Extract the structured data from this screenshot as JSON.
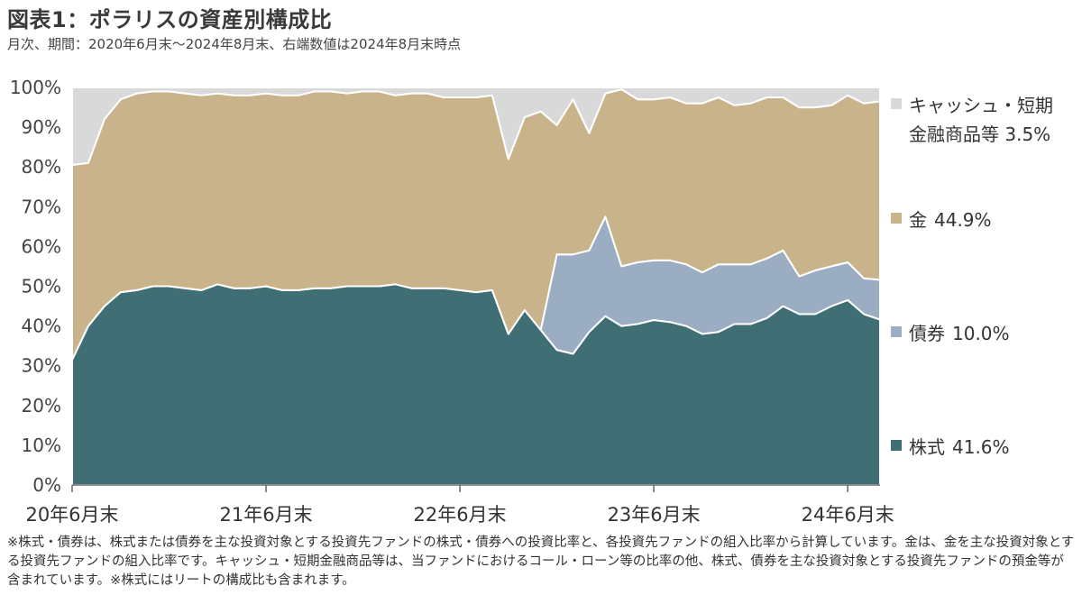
{
  "header": {
    "title": "図表1：ポラリスの資産別構成比",
    "subtitle": "月次、期間：2020年6月末〜2024年8月末、右端数値は2024年8月末時点"
  },
  "footer": {
    "note": "※株式・債券は、株式または債券を主な投資対象とする投資先ファンドの株式・債券への投資比率と、各投資先ファンドの組入比率から計算しています。金は、金を主な投資対象とする投資先ファンドの組入比率です。キャッシュ・短期金融商品等は、当ファンドにおけるコール・ローン等の比率の他、株式、債券を主な投資対象とする投資先ファンドの預金等が含まれています。※株式にはリートの構成比も含まれます。"
  },
  "colors": {
    "stock": "#3f6e75",
    "bond": "#9aadc2",
    "gold": "#c9b38a",
    "cash": "#d9d9d9"
  },
  "chart_data": {
    "type": "area",
    "stacked": true,
    "x_start": "2020-06",
    "x_end": "2024-08",
    "x_tick_labels": [
      "20年6月末",
      "21年6月末",
      "22年6月末",
      "23年6月末",
      "24年6月末"
    ],
    "y_tick_labels": [
      "0%",
      "10%",
      "20%",
      "30%",
      "40%",
      "50%",
      "60%",
      "70%",
      "80%",
      "90%",
      "100%"
    ],
    "ylim": [
      0,
      100
    ],
    "series": [
      {
        "key": "stock",
        "name": "株式",
        "final_label": "41.6%",
        "values": [
          31.5,
          40,
          45,
          48.5,
          49,
          50,
          50,
          49.5,
          49,
          50.5,
          49.5,
          49.5,
          50,
          49,
          49,
          49.5,
          49.5,
          50,
          50,
          50,
          50.5,
          49.5,
          49.5,
          49.5,
          49,
          48.5,
          49,
          38,
          44,
          39,
          34,
          33,
          38.5,
          42.5,
          40,
          40.5,
          41.5,
          41,
          40,
          38,
          38.5,
          40.5,
          40.5,
          42,
          45,
          43,
          43,
          45,
          46.5,
          43,
          41.6
        ]
      },
      {
        "key": "bond",
        "name": "債券",
        "final_label": "10.0%",
        "values": [
          0,
          0,
          0,
          0,
          0,
          0,
          0,
          0,
          0,
          0,
          0,
          0,
          0,
          0,
          0,
          0,
          0,
          0,
          0,
          0,
          0,
          0,
          0,
          0,
          0,
          0,
          0,
          0,
          0,
          0,
          24,
          25,
          20.5,
          25,
          15,
          15.5,
          15,
          15.5,
          15.5,
          15.5,
          17,
          15,
          15,
          15,
          14,
          9.5,
          11,
          10,
          9.5,
          9,
          10.0
        ]
      },
      {
        "key": "gold",
        "name": "金",
        "final_label": "44.9%",
        "values": [
          49,
          41,
          47,
          48.5,
          49.5,
          49,
          49,
          49,
          49,
          48,
          48.5,
          48.5,
          48.5,
          49,
          49,
          49.5,
          49.5,
          48.5,
          49,
          49,
          47.5,
          49,
          49,
          48,
          48.5,
          49,
          49,
          44,
          48.5,
          55,
          32.5,
          39,
          29.5,
          31,
          44.5,
          41,
          40.5,
          41,
          40.5,
          42.5,
          42,
          40,
          40.5,
          40.5,
          38.5,
          42.5,
          41,
          40.5,
          42,
          44,
          44.9
        ]
      },
      {
        "key": "cash",
        "name": "キャッシュ・短期金融商品等",
        "name_lines": [
          "キャッシュ・短期",
          "金融商品等 3.5%"
        ],
        "final_label": "3.5%",
        "values": [
          19.5,
          19,
          8,
          3,
          1.5,
          1,
          1,
          1.5,
          2,
          1.5,
          2,
          2,
          1.5,
          2,
          2,
          1,
          1,
          1.5,
          1,
          1,
          2,
          1.5,
          1.5,
          2.5,
          2.5,
          2.5,
          2,
          18,
          7.5,
          6,
          9.5,
          3,
          11.5,
          1.5,
          0.5,
          3,
          3,
          2.5,
          4,
          4,
          2.5,
          4.5,
          4,
          2.5,
          2.5,
          5,
          5,
          4.5,
          2,
          4,
          3.5
        ]
      }
    ]
  }
}
